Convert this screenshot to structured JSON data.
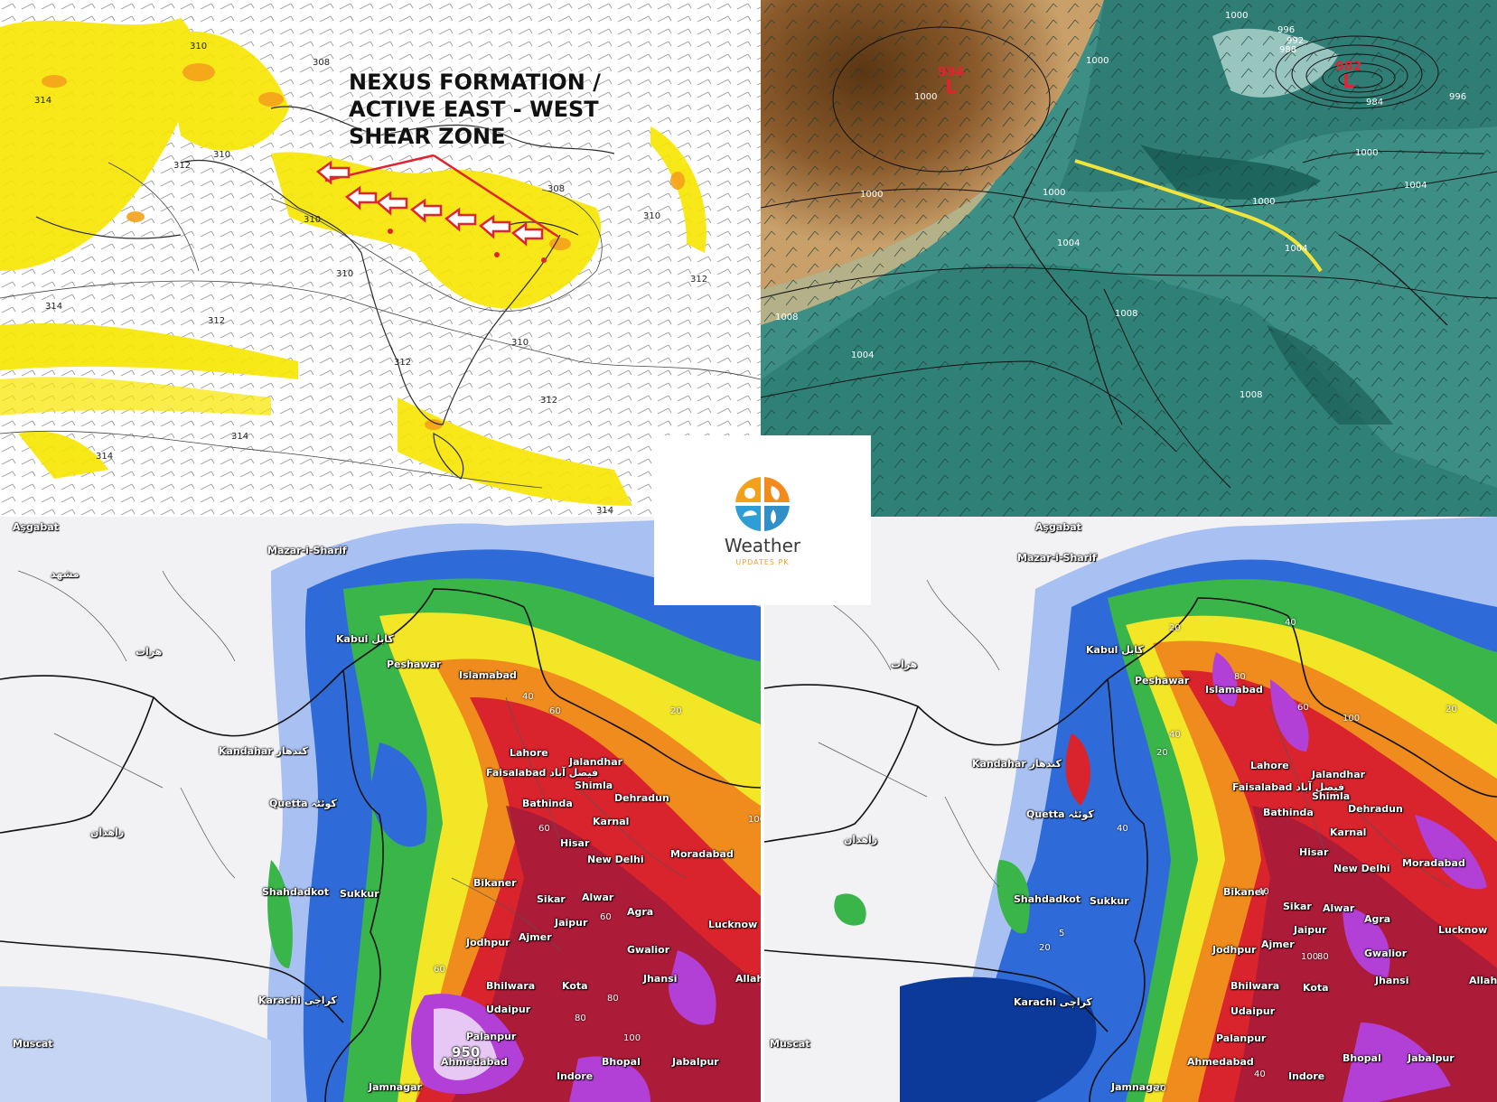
{
  "top_left": {
    "heading_lines": [
      "NEXUS FORMATION /",
      "ACTIVE EAST - WEST",
      "SHEAR ZONE"
    ],
    "contour_values": [
      "310",
      "314",
      "308",
      "310",
      "312",
      "310",
      "308",
      "310",
      "314",
      "312",
      "310",
      "312",
      "312",
      "314",
      "314",
      "310",
      "312",
      "314"
    ]
  },
  "top_right": {
    "lows": [
      {
        "value": "994",
        "symbol": "L"
      },
      {
        "value": "982",
        "symbol": "L"
      }
    ],
    "isobar_values": [
      "1000",
      "1000",
      "1000",
      "1000",
      "996",
      "992",
      "988",
      "984",
      "996",
      "1000",
      "1000",
      "1004",
      "1000",
      "1004",
      "1004",
      "1008",
      "1004",
      "1008",
      "1008"
    ]
  },
  "logo": {
    "brand": "Weather",
    "sub": "UPDATES PK"
  },
  "bottom_left": {
    "cities": [
      "Aşgabat",
      "Mazar-i-Sharif",
      "مشهد",
      "هرات",
      "Kabul کابل",
      "Peshawar",
      "Islamabad",
      "Kandahar کندهار",
      "Lahore",
      "Jalandhar",
      "Faisalabad فیصل آباد",
      "Shimla",
      "Dehradun",
      "Quetta کوئٹہ",
      "Bathinda",
      "Karnal",
      "زاهدان",
      "Hisar",
      "New Delhi",
      "Moradabad",
      "Bikaner",
      "Shahdadkot",
      "Sukkur",
      "Sikar",
      "Alwar",
      "Agra",
      "Jaipur",
      "Lucknow",
      "Jodhpur",
      "Ajmer",
      "Gwalior",
      "Jhansi",
      "Karachi کراچی",
      "Bhilwara",
      "Kota",
      "Allah",
      "Udaipur",
      "Palanpur",
      "Ahmedabad",
      "Bhopal",
      "Jabalpur",
      "Indore",
      "Jamnagar",
      "Muscat"
    ],
    "values": [
      "950",
      "40",
      "60",
      "20",
      "100",
      "60",
      "60",
      "80",
      "100",
      "60",
      "80"
    ]
  },
  "bottom_right": {
    "cities": [
      "Aşgabat",
      "Mazar-i-Sharif",
      "هرات",
      "Kabul کابل",
      "Peshawar",
      "Islamabad",
      "Kandahar کندهار",
      "Lahore",
      "Jalandhar",
      "Faisalabad فیصل آباد",
      "Shimla",
      "Dehradun",
      "Quetta کوئٹہ",
      "Bathinda",
      "Karnal",
      "زاهدان",
      "Hisar",
      "New Delhi",
      "Moradabad",
      "Bikaner",
      "Shahdadkot",
      "Sukkur",
      "Sikar",
      "Alwar",
      "Agra",
      "Jaipur",
      "Lucknow",
      "Jodhpur",
      "Ajmer",
      "Gwalior",
      "Jhansi",
      "Karachi کراچی",
      "Bhilwara",
      "Kota",
      "Allah",
      "Udaipur",
      "Palanpur",
      "Ahmedabad",
      "Bhopal",
      "Jabalpur",
      "Indore",
      "Jamnagar",
      "Muscat"
    ],
    "values": [
      "40",
      "20",
      "20",
      "80",
      "60",
      "100",
      "40",
      "40",
      "20",
      "5",
      "20",
      "40",
      "100",
      "80",
      "40",
      "20"
    ]
  },
  "colors": {
    "jet_yellow": "#f7e600",
    "jet_orange": "#f4a11a",
    "shear_arrow": "#e0242f",
    "trough_line": "#f3e43a",
    "dry_brown": "#8a5a2b",
    "moist_teal": "#2f8a7f",
    "rain_blue": "#2f6bd8",
    "rain_green": "#3ab54a",
    "rain_yellow": "#f2e626",
    "rain_orange": "#f08c1e",
    "rain_red": "#d9232d",
    "rain_purple": "#b23fd6"
  },
  "icons": [
    "shear-arrow-icon",
    "weather-logo-icon"
  ]
}
